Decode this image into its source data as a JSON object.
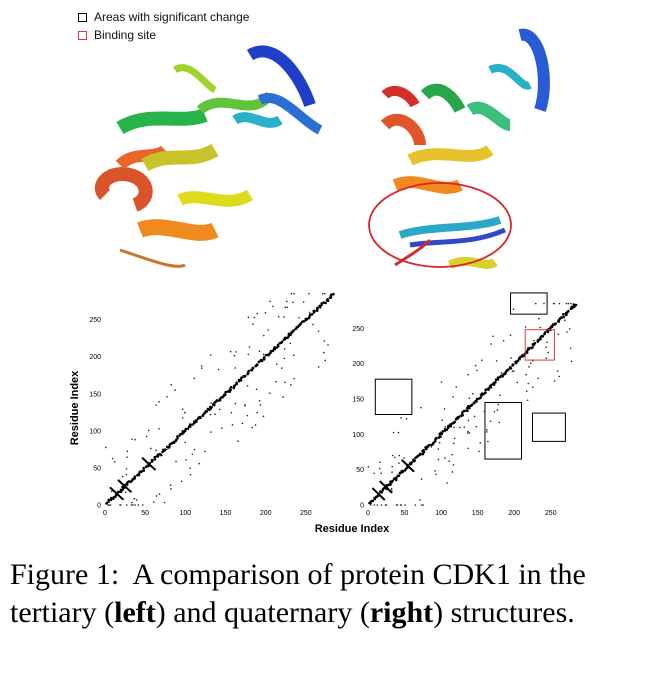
{
  "legend": {
    "items": [
      {
        "label": "Areas with significant change",
        "color": "#000000"
      },
      {
        "label": "Binding site",
        "color": "#e0383b"
      }
    ]
  },
  "chart_data": {
    "type": "scatter",
    "ylabel": "Residue Index",
    "xlabel": "Residue Index",
    "panels": [
      {
        "name": "left",
        "xticks": [
          0,
          50,
          100,
          150,
          200,
          250
        ],
        "yticks": [
          0,
          50,
          100,
          150,
          200,
          250
        ],
        "xlim": [
          0,
          290
        ],
        "ylim": [
          0,
          290
        ]
      },
      {
        "name": "right",
        "xticks": [
          0,
          50,
          100,
          150,
          200,
          250
        ],
        "yticks": [
          0,
          50,
          100,
          150,
          200,
          250
        ],
        "xlim": [
          0,
          290
        ],
        "ylim": [
          0,
          290
        ],
        "highlights": [
          {
            "kind": "change",
            "x": [
              195,
              245
            ],
            "y": [
              270,
              300
            ]
          },
          {
            "kind": "change",
            "x": [
              10,
              60
            ],
            "y": [
              128,
              178
            ]
          },
          {
            "kind": "change",
            "x": [
              160,
              210
            ],
            "y": [
              65,
              145
            ]
          },
          {
            "kind": "change",
            "x": [
              225,
              270
            ],
            "y": [
              90,
              130
            ]
          },
          {
            "kind": "binding",
            "x": [
              215,
              255
            ],
            "y": [
              205,
              248
            ]
          }
        ]
      }
    ]
  },
  "caption": {
    "label": "Figure 1:",
    "text_a": "A comparison of protein CDK1 in the tertiary (",
    "bold_a": "left",
    "text_b": ") and quaternary (",
    "bold_b": "right",
    "text_c": ") structures."
  }
}
